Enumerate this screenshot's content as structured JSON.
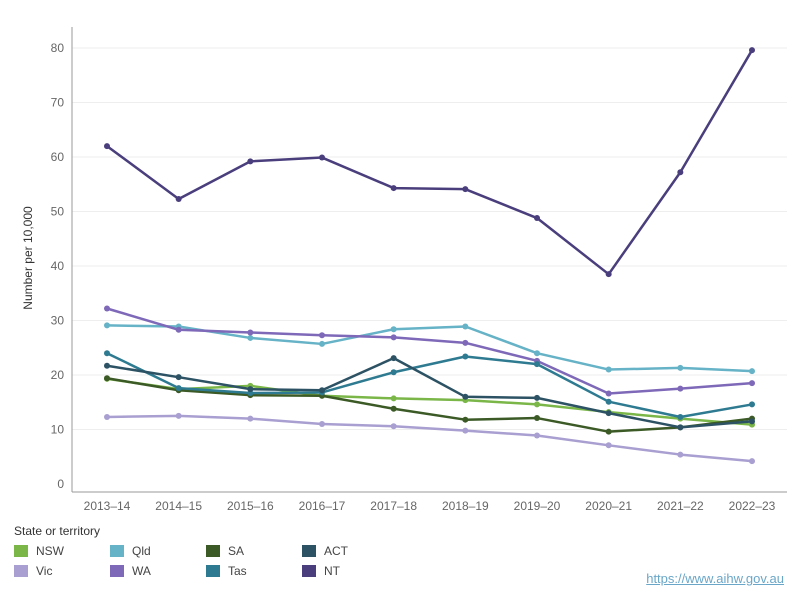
{
  "chart_data": {
    "type": "line",
    "title": "",
    "xlabel": "",
    "ylabel": "Number per 10,000",
    "ylim": [
      0,
      80
    ],
    "yticks": [
      0,
      10,
      20,
      30,
      40,
      50,
      60,
      70,
      80
    ],
    "grid": "horizontal",
    "categories": [
      "2013–14",
      "2014–15",
      "2015–16",
      "2016–17",
      "2017–18",
      "2018–19",
      "2019–20",
      "2020–21",
      "2021–22",
      "2022–23"
    ],
    "legend_title": "State or territory",
    "legend_placement": "bottom-left",
    "series": [
      {
        "name": "NSW",
        "color": "#7ab648",
        "values": [
          19.3,
          17.4,
          18.0,
          16.2,
          15.7,
          15.4,
          14.6,
          13.2,
          12.0,
          10.9
        ]
      },
      {
        "name": "Vic",
        "color": "#a99fd0",
        "values": [
          12.3,
          12.5,
          12.0,
          11.0,
          10.6,
          9.8,
          8.9,
          7.1,
          5.4,
          4.2
        ]
      },
      {
        "name": "Qld",
        "color": "#66b2c6",
        "values": [
          29.1,
          28.9,
          26.8,
          25.7,
          28.4,
          28.9,
          24.0,
          21.0,
          21.3,
          20.7
        ]
      },
      {
        "name": "WA",
        "color": "#7e68b8",
        "values": [
          32.2,
          28.3,
          27.8,
          27.3,
          26.9,
          25.9,
          22.6,
          16.6,
          17.5,
          18.5
        ]
      },
      {
        "name": "SA",
        "color": "#3b5a26",
        "values": [
          19.4,
          17.2,
          16.3,
          16.2,
          13.8,
          11.8,
          12.1,
          9.6,
          10.4,
          12.0
        ]
      },
      {
        "name": "Tas",
        "color": "#2e7a90",
        "values": [
          24.0,
          17.6,
          16.7,
          16.8,
          20.5,
          23.4,
          22.0,
          15.1,
          12.3,
          14.6
        ]
      },
      {
        "name": "ACT",
        "color": "#2c5264",
        "values": [
          21.7,
          19.6,
          17.4,
          17.2,
          23.1,
          16.0,
          15.8,
          13.0,
          10.4,
          11.5
        ]
      },
      {
        "name": "NT",
        "color": "#4a3e7c",
        "values": [
          62.0,
          52.3,
          59.2,
          59.9,
          54.3,
          54.1,
          48.8,
          38.5,
          57.2,
          79.6
        ]
      }
    ]
  },
  "legend": {
    "title": "State or territory",
    "items": [
      {
        "label": "NSW",
        "color": "#7ab648"
      },
      {
        "label": "Qld",
        "color": "#66b2c6"
      },
      {
        "label": "SA",
        "color": "#3b5a26"
      },
      {
        "label": "ACT",
        "color": "#2c5264"
      },
      {
        "label": "Vic",
        "color": "#a99fd0"
      },
      {
        "label": "WA",
        "color": "#7e68b8"
      },
      {
        "label": "Tas",
        "color": "#2e7a90"
      },
      {
        "label": "NT",
        "color": "#4a3e7c"
      }
    ]
  },
  "source": {
    "link_text": "https://www.aihw.gov.au"
  }
}
